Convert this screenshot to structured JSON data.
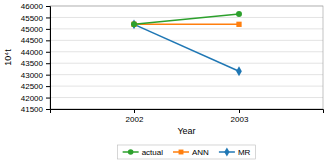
{
  "chart_data": {
    "type": "line",
    "x": [
      2002,
      2003
    ],
    "series": [
      {
        "name": "MR",
        "values": [
          45200,
          43150
        ],
        "marker": "diamond"
      },
      {
        "name": "ANN",
        "values": [
          45200,
          45200
        ],
        "marker": "square"
      },
      {
        "name": "actual",
        "values": [
          45200,
          45650
        ],
        "marker": "circle"
      }
    ],
    "xlim": [
      2001.2,
      2003.8
    ],
    "xticks": [
      2002,
      2003
    ],
    "ylim": [
      41500,
      46000
    ],
    "yticks": [
      41500,
      42000,
      42500,
      43000,
      43500,
      44000,
      44500,
      45000,
      45500,
      46000
    ],
    "xlabel": "Year",
    "ylabel": "10⁴t",
    "grid": true,
    "legend": "bottom"
  }
}
